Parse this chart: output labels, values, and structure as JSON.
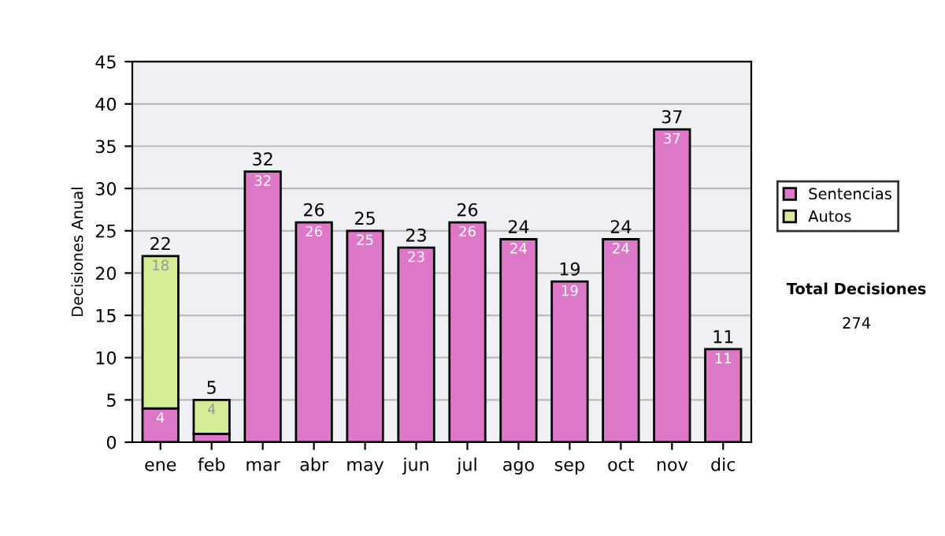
{
  "chart_data": {
    "type": "bar",
    "stacked": true,
    "ylabel": "Decisiones Anual",
    "categories": [
      "ene",
      "feb",
      "mar",
      "abr",
      "may",
      "jun",
      "jul",
      "ago",
      "sep",
      "oct",
      "nov",
      "dic"
    ],
    "series": [
      {
        "name": "Sentencias",
        "color": "#dd77c8",
        "values": [
          4,
          1,
          32,
          26,
          25,
          23,
          26,
          24,
          19,
          24,
          37,
          11
        ],
        "value_labels": [
          "4",
          null,
          "32",
          "26",
          "25",
          "23",
          "26",
          "24",
          "19",
          "24",
          "37",
          "11"
        ]
      },
      {
        "name": "Autos",
        "color": "#d4ec94",
        "values": [
          18,
          4,
          null,
          null,
          null,
          null,
          null,
          null,
          null,
          null,
          null,
          null
        ],
        "value_labels": [
          "18",
          "4",
          null,
          null,
          null,
          null,
          null,
          null,
          null,
          null,
          null,
          null
        ]
      }
    ],
    "totals": [
      "22",
      "5",
      "32",
      "26",
      "25",
      "23",
      "26",
      "24",
      "19",
      "24",
      "37",
      "11"
    ],
    "ylim": [
      0,
      45
    ],
    "yticks": [
      0,
      5,
      10,
      15,
      20,
      25,
      30,
      35,
      40,
      45
    ],
    "grid": "y",
    "legend": "right",
    "annotations": [
      "Total Decisiones",
      "274"
    ]
  }
}
